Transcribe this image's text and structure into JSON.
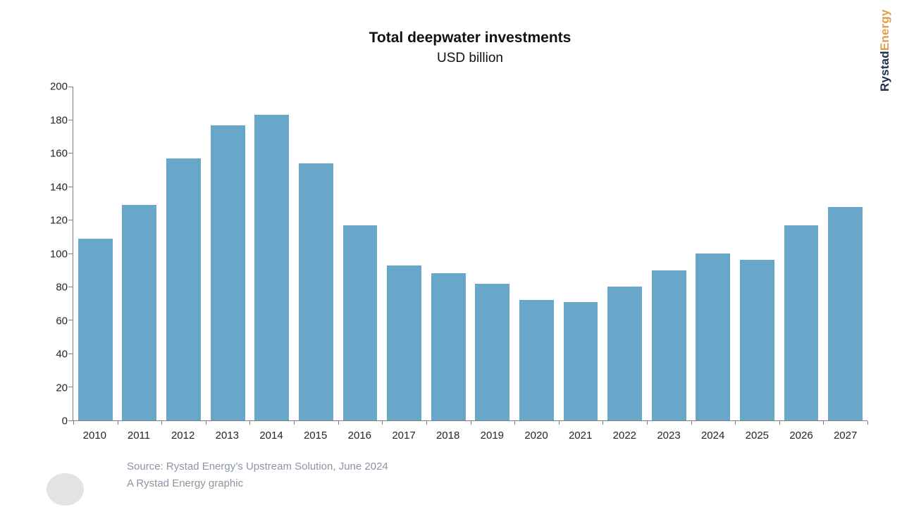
{
  "header": {
    "title": "Total deepwater investments",
    "subtitle": "USD billion"
  },
  "logo": {
    "part1": "Rystad",
    "part2": "Energy",
    "part1_color": "#1e2f4d",
    "part2_color": "#df9f4e"
  },
  "chart_data": {
    "type": "bar",
    "title": "Total deepwater investments",
    "subtitle": "USD billion",
    "categories": [
      "2010",
      "2011",
      "2012",
      "2013",
      "2014",
      "2015",
      "2016",
      "2017",
      "2018",
      "2019",
      "2020",
      "2021",
      "2022",
      "2023",
      "2024",
      "2025",
      "2026",
      "2027"
    ],
    "values": [
      109,
      129,
      157,
      177,
      183,
      154,
      117,
      93,
      88,
      82,
      72,
      71,
      80,
      90,
      100,
      96,
      117,
      128
    ],
    "xlabel": "",
    "ylabel": "",
    "ylim": [
      0,
      200
    ],
    "ytick_step": 20,
    "grid": false,
    "legend": "none",
    "bar_color": "#68a7ca",
    "axis_color": "#7f7f7f",
    "annotation": {
      "text": "-",
      "near_category": "2024"
    }
  },
  "footer": {
    "source_line1": "Source: Rystad Energy’s Upstream Solution, June 2024",
    "source_line2": "A Rystad Energy graphic"
  }
}
